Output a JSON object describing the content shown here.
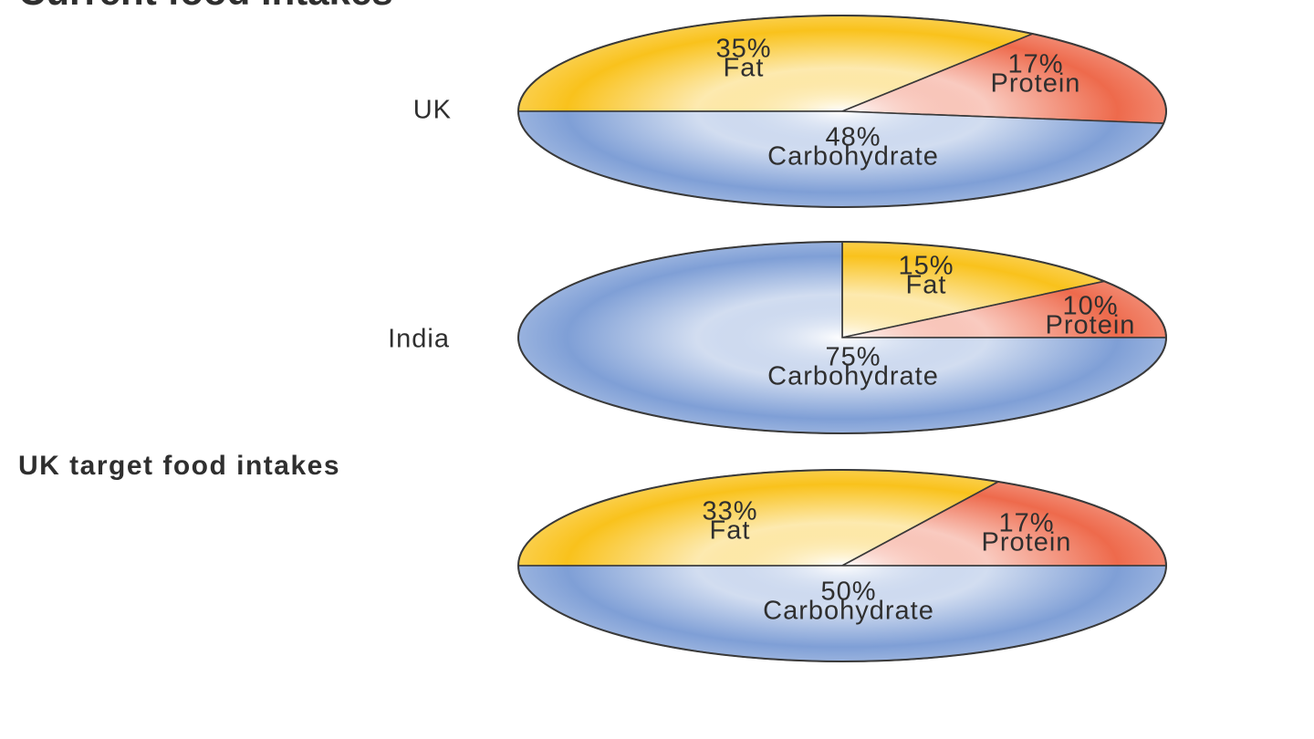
{
  "heading": "Current food intakes",
  "subheading": "UK target food intakes",
  "chart_data": [
    {
      "type": "pie",
      "label": "UK",
      "categories": [
        "Fat",
        "Protein",
        "Carbohydrate"
      ],
      "values": [
        35,
        17,
        48
      ],
      "value_labels": [
        "35%",
        "17%",
        "48%"
      ],
      "colors": [
        "#f9c21c",
        "#ee6a4c",
        "#7f9fd6"
      ]
    },
    {
      "type": "pie",
      "label": "India",
      "categories": [
        "Fat",
        "Protein",
        "Carbohydrate"
      ],
      "values": [
        15,
        10,
        75
      ],
      "value_labels": [
        "15%",
        "10%",
        "75%"
      ],
      "colors": [
        "#f9c21c",
        "#ee6a4c",
        "#7f9fd6"
      ]
    },
    {
      "type": "pie",
      "categories": [
        "Fat",
        "Protein",
        "Carbohydrate"
      ],
      "values": [
        33,
        17,
        50
      ],
      "value_labels": [
        "33%",
        "17%",
        "50%"
      ],
      "colors": [
        "#f9c21c",
        "#ee6a4c",
        "#7f9fd6"
      ]
    }
  ]
}
